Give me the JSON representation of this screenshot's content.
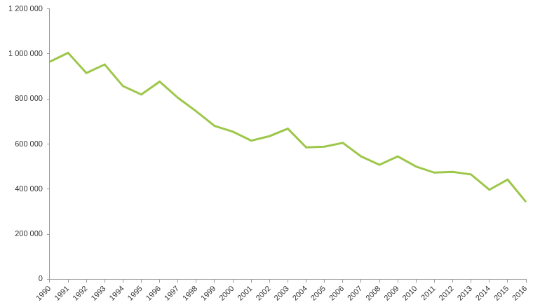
{
  "chart_data": {
    "type": "line",
    "categories": [
      "1990",
      "1991",
      "1992",
      "1993",
      "1994",
      "1995",
      "1996",
      "1997",
      "1998",
      "1999",
      "2000",
      "2001",
      "2002",
      "2003",
      "2004",
      "2005",
      "2006",
      "2007",
      "2008",
      "2009",
      "2010",
      "2011",
      "2012",
      "2013",
      "2014",
      "2015",
      "2016"
    ],
    "values": [
      965000,
      1005000,
      915000,
      953000,
      857000,
      820000,
      877000,
      805000,
      745000,
      680000,
      655000,
      615000,
      635000,
      668000,
      585000,
      588000,
      605000,
      545000,
      508000,
      545000,
      500000,
      473000,
      476000,
      465000,
      397000,
      442000,
      343000
    ],
    "color": "#9dc74a",
    "ylim": [
      0,
      1200000
    ],
    "yticks": [
      0,
      {
        "value": 200000,
        "label": "200 000"
      },
      {
        "value": 400000,
        "label": "400 000"
      },
      {
        "value": 600000,
        "label": "600 000"
      },
      {
        "value": 800000,
        "label": "800 000"
      },
      {
        "value": 1000000,
        "label": "1 000 000"
      },
      {
        "value": 1200000,
        "label": "1 200 000"
      }
    ],
    "grid": false
  }
}
